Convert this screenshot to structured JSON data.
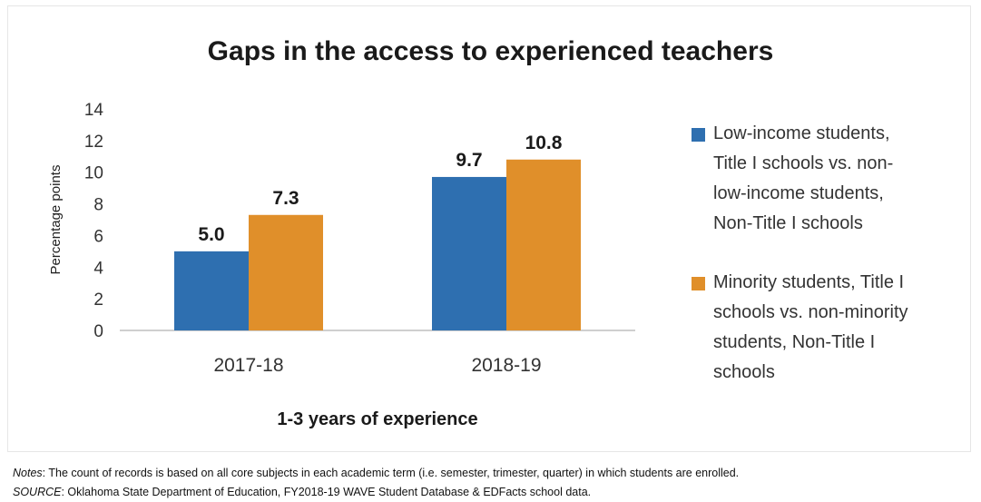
{
  "chart_data": {
    "type": "bar",
    "title": "Gaps in the access to experienced teachers",
    "xlabel": "1-3 years of experience",
    "ylabel": "Percentage points",
    "categories": [
      "2017-18",
      "2018-19"
    ],
    "ylim": [
      0,
      14
    ],
    "yticks": [
      0,
      2,
      4,
      6,
      8,
      10,
      12,
      14
    ],
    "grid": false,
    "legend_position": "right",
    "series": [
      {
        "name": "Low-income students, Title I schools vs. non-low-income students, Non-Title I schools",
        "legend_lines": [
          "Low-income students,",
          "Title I schools vs. non-",
          "low-income students,",
          "Non-Title I schools"
        ],
        "color": "#2E6FB0",
        "values": [
          5.0,
          9.7
        ],
        "labels": [
          "5.0",
          "9.7"
        ]
      },
      {
        "name": "Minority students, Title I schools vs. non-minority students, Non-Title I schools",
        "legend_lines": [
          "Minority students, Title I",
          "schools vs. non-minority",
          "students, Non-Title I",
          "schools"
        ],
        "color": "#E08F2A",
        "values": [
          7.3,
          10.8
        ],
        "labels": [
          "7.3",
          "10.8"
        ]
      }
    ]
  },
  "notes": {
    "notes_label": "Notes",
    "notes_text": ": The count of records is based on all core subjects in each academic term (i.e. semester, trimester, quarter) in which students are enrolled.",
    "source_label": "SOURCE",
    "source_text": ": Oklahoma State Department of Education, FY2018-19 WAVE Student Database & EDFacts school data."
  }
}
